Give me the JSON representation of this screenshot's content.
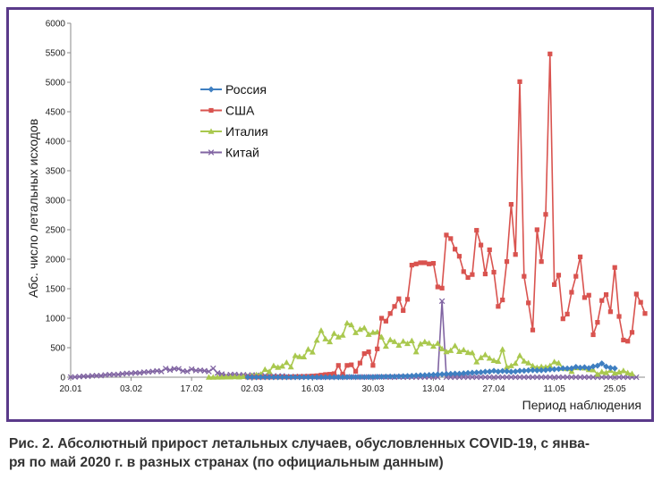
{
  "caption": {
    "line1": "Рис. 2. Абсолютный прирост летальных случаев, обусловленных COVID-19, с янва-",
    "line2": "ря по май 2020 г. в разных странах (по официальным данным)"
  },
  "colors": {
    "frame": "#5a3a8a",
    "russia": "#3f7fc1",
    "usa": "#d9534f",
    "italy": "#a9c84e",
    "china": "#8064a2"
  },
  "chart_data": {
    "type": "line",
    "title": "",
    "xlabel": "Период наблюдения",
    "ylabel": "Абс. число летальных исходов",
    "ylim": [
      0,
      6000
    ],
    "yticks": [
      0,
      500,
      1000,
      1500,
      2000,
      2500,
      3000,
      3500,
      4000,
      4500,
      5000,
      5500,
      6000
    ],
    "x_start": "2020-01-20",
    "x_end": "2020-06-01",
    "xtick_labels": [
      "20.01",
      "03.02",
      "17.02",
      "02.03",
      "16.03",
      "30.03",
      "13.04",
      "27.04",
      "11.05",
      "25.05"
    ],
    "legend_position": "upper-left",
    "grid": false,
    "series": [
      {
        "name": "Россия",
        "color": "#3f7fc1",
        "marker": "diamond",
        "x_start": "2020-03-01",
        "values": [
          0,
          0,
          0,
          0,
          0,
          0,
          0,
          0,
          0,
          0,
          0,
          0,
          0,
          0,
          0,
          0,
          0,
          0,
          0,
          0,
          0,
          0,
          0,
          1,
          1,
          1,
          1,
          2,
          3,
          4,
          6,
          8,
          9,
          11,
          12,
          13,
          17,
          19,
          22,
          28,
          32,
          35,
          38,
          41,
          48,
          50,
          55,
          57,
          60,
          58,
          66,
          72,
          76,
          80,
          84,
          93,
          95,
          108,
          95,
          104,
          100,
          93,
          96,
          108,
          110,
          115,
          120,
          116,
          118,
          122,
          130,
          135,
          140,
          150,
          147,
          150,
          174,
          161,
          169,
          153,
          181,
          196,
          233,
          180,
          160,
          150
        ]
      },
      {
        "name": "США",
        "color": "#d9534f",
        "marker": "square",
        "x_start": "2020-03-01",
        "values": [
          1,
          1,
          1,
          1,
          2,
          2,
          3,
          3,
          3,
          4,
          5,
          8,
          10,
          12,
          15,
          20,
          25,
          35,
          45,
          50,
          60,
          200,
          50,
          200,
          210,
          100,
          240,
          400,
          430,
          200,
          480,
          1000,
          950,
          1080,
          1200,
          1330,
          1130,
          1320,
          1900,
          1920,
          1940,
          1940,
          1920,
          1930,
          1530,
          1510,
          2410,
          2350,
          2170,
          2050,
          1790,
          1690,
          1740,
          2490,
          2240,
          1750,
          2160,
          1780,
          1200,
          1310,
          1960,
          2930,
          2080,
          5010,
          1710,
          1260,
          800,
          2500,
          1960,
          2760,
          5480,
          1570,
          1730,
          990,
          1070,
          1440,
          1710,
          2040,
          1350,
          1390,
          720,
          930,
          1300,
          1400,
          1110,
          1860,
          1030,
          630,
          610,
          760,
          1410,
          1270,
          1080
        ]
      },
      {
        "name": "Италия",
        "color": "#a9c84e",
        "marker": "triangle",
        "x_start": "2020-02-21",
        "values": [
          1,
          1,
          3,
          2,
          5,
          4,
          8,
          5,
          12,
          11,
          28,
          42,
          50,
          133,
          97,
          196,
          168,
          189,
          250,
          175,
          368,
          349,
          345,
          475,
          427,
          627,
          793,
          651,
          601,
          743,
          683,
          712,
          919,
          889,
          756,
          812,
          837,
          727,
          760,
          766,
          681,
          525,
          636,
          604,
          542,
          610,
          570,
          619,
          431,
          566,
          602,
          578,
          525,
          575,
          482,
          433,
          454,
          534,
          437,
          464,
          420,
          415,
          260,
          333,
          382,
          323,
          285,
          269,
          474,
          174,
          195,
          236,
          369,
          274,
          243,
          194,
          165,
          179,
          172,
          195,
          262,
          242,
          153,
          145,
          99,
          162,
          161,
          156,
          130,
          125,
          50,
          92,
          78,
          117,
          70,
          87,
          111,
          75,
          60
        ]
      },
      {
        "name": "Китай",
        "color": "#8064a2",
        "marker": "x",
        "x_start": "2020-01-20",
        "values": [
          2,
          3,
          9,
          16,
          15,
          24,
          26,
          26,
          38,
          43,
          46,
          45,
          57,
          64,
          66,
          73,
          73,
          86,
          89,
          97,
          108,
          97,
          146,
          121,
          143,
          142,
          105,
          98,
          136,
          114,
          118,
          109,
          97,
          150,
          71,
          52,
          29,
          44,
          47,
          35,
          42,
          31,
          38,
          31,
          30,
          28,
          27,
          22,
          17,
          22,
          11,
          7,
          13,
          10,
          14,
          13,
          11,
          8,
          3,
          7,
          6,
          9,
          7,
          4,
          6,
          5,
          3,
          5,
          4,
          4,
          1,
          7,
          4,
          3,
          1,
          1,
          6,
          1,
          1,
          2,
          1,
          1,
          1,
          3,
          2,
          1,
          1290,
          0,
          0,
          0,
          0,
          0,
          0,
          0,
          0,
          0,
          0,
          0,
          0,
          0,
          0,
          0,
          0,
          0,
          0,
          0,
          0,
          0,
          0,
          0,
          0,
          0,
          0,
          0,
          0,
          0,
          0,
          0,
          0,
          0,
          0,
          0,
          0,
          0,
          0,
          0,
          0,
          0,
          0,
          0,
          0,
          0
        ]
      }
    ]
  }
}
